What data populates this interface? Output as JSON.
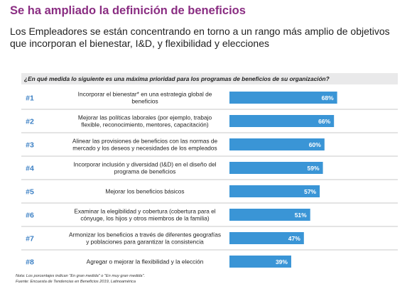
{
  "title": "Se ha ampliado la definición de beneficios",
  "subtitle": "Los Empleadores se están concentrando en torno a un rango más amplio de objetivos que incorporan el bienestar, I&D, y flexibilidad y elecciones",
  "question": "¿En qué medida lo siguiente es una máxima prioridad para los programas de beneficios de su organización?",
  "colors": {
    "title": "#8a2d82",
    "bar": "#3a95d6",
    "rank": "#3a7fc4",
    "divider": "#b9b9b9"
  },
  "chart_data": {
    "type": "bar",
    "orientation": "horizontal",
    "xlim": [
      0,
      100
    ],
    "value_suffix": "%",
    "items": [
      {
        "rank": "#1",
        "label": [
          "Incorporar el bienestar* en una estrategia global de",
          "beneficios"
        ],
        "value": 68
      },
      {
        "rank": "#2",
        "label": [
          "Mejorar las políticas laborales (por ejemplo, trabajo",
          "flexible, reconocimiento, mentores, capacitación)"
        ],
        "value": 66
      },
      {
        "rank": "#3",
        "label": [
          "Alinear las provisiones de beneficios con las normas de",
          "mercado y los deseos y necesidades de los empleados"
        ],
        "value": 60
      },
      {
        "rank": "#4",
        "label": [
          "Incorporar inclusión y diversidad (I&D) en el diseño del",
          "programa de beneficios"
        ],
        "value": 59
      },
      {
        "rank": "#5",
        "label": [
          "Mejorar los beneficios básicos"
        ],
        "value": 57
      },
      {
        "rank": "#6",
        "label": [
          "Examinar la elegibilidad y cobertura (cobertura para el",
          "cónyuge, los hijos y otros miembros de la familia)"
        ],
        "value": 51
      },
      {
        "rank": "#7",
        "label": [
          "Armonizar los beneficios a través de diferentes geografías",
          "y poblaciones para garantizar la consistencia"
        ],
        "value": 47
      },
      {
        "rank": "#8",
        "label": [
          "Agregar o mejorar la flexibilidad y la elección"
        ],
        "value": 39
      }
    ]
  },
  "footnotes": {
    "note": "Nota: Los porcentajes indican \"En gran medida\" o \"En muy gran medida\".",
    "source": "Fuente: Encuesta de Tendencias en Beneficios 2019, Latinoamérica"
  }
}
